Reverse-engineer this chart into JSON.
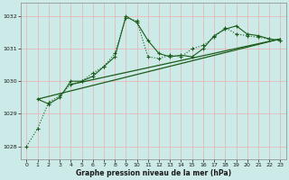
{
  "bg_color": "#cceae7",
  "grid_color": "#add8d5",
  "line_color": "#1a5c1a",
  "title": "Graphe pression niveau de la mer (hPa)",
  "xlim": [
    -0.5,
    23.5
  ],
  "ylim": [
    1027.6,
    1032.4
  ],
  "yticks": [
    1028,
    1029,
    1030,
    1031,
    1032
  ],
  "xticks": [
    0,
    1,
    2,
    3,
    4,
    5,
    6,
    7,
    8,
    9,
    10,
    11,
    12,
    13,
    14,
    15,
    16,
    17,
    18,
    19,
    20,
    21,
    22,
    23
  ],
  "series1_x": [
    0,
    1,
    2,
    3,
    4,
    5,
    6,
    7,
    8,
    9,
    10,
    11,
    12,
    13,
    14,
    15,
    16,
    17,
    18,
    19,
    20,
    21,
    22,
    23
  ],
  "series1_y": [
    1028.0,
    1028.55,
    1029.35,
    1029.55,
    1029.9,
    1030.0,
    1030.25,
    1030.45,
    1030.85,
    1031.95,
    1031.85,
    1030.75,
    1030.7,
    1030.8,
    1030.75,
    1031.0,
    1031.1,
    1031.35,
    1031.65,
    1031.45,
    1031.4,
    1031.35,
    1031.3,
    1031.25
  ],
  "series2_x": [
    1,
    2,
    3,
    4,
    5,
    6,
    7,
    8,
    9,
    10,
    11,
    12,
    13,
    14,
    15,
    16,
    17,
    18,
    19,
    20,
    21,
    22,
    23
  ],
  "series2_y": [
    1029.45,
    1029.3,
    1029.5,
    1030.0,
    1030.0,
    1030.15,
    1030.45,
    1030.75,
    1032.0,
    1031.8,
    1031.25,
    1030.85,
    1030.75,
    1030.8,
    1030.75,
    1031.0,
    1031.4,
    1031.6,
    1031.7,
    1031.45,
    1031.4,
    1031.3,
    1031.25
  ],
  "trend1_x": [
    1,
    23
  ],
  "trend1_y": [
    1029.45,
    1031.3
  ],
  "trend2_x": [
    4,
    23
  ],
  "trend2_y": [
    1029.9,
    1031.3
  ]
}
